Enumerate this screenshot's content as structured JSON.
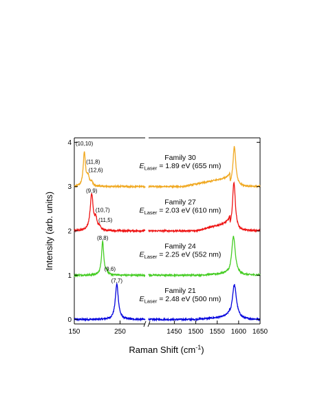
{
  "chart_data": {
    "type": "line",
    "title": "",
    "xlabel": "Raman Shift (cm",
    "xlabel_sup": "-1",
    "xlabel_tail": ")",
    "ylabel": "Intensity (arb. units)",
    "x_axis_break": true,
    "x_segments": [
      {
        "range": [
          150,
          305
        ],
        "ticks": [
          "150",
          "250"
        ],
        "tick_values": [
          150,
          250
        ]
      },
      {
        "range": [
          1390,
          1650
        ],
        "ticks": [
          "1450",
          "1500",
          "1550",
          "1600",
          "1650"
        ],
        "tick_values": [
          1450,
          1500,
          1550,
          1600,
          1650
        ]
      }
    ],
    "ylim": [
      -0.1,
      4.1
    ],
    "y_ticks": [
      "0",
      "1",
      "2",
      "3",
      "4"
    ],
    "grid": false,
    "series": [
      {
        "family": "Family 21",
        "laser_sub": "Laser",
        "laser_value": "= 2.48 eV (500 nm)",
        "color": "#0000dd",
        "offset": 0,
        "peaks_low": [
          {
            "x": 243,
            "amp": 0.8,
            "w": 4
          }
        ],
        "peaks_high": [
          {
            "x": 1590,
            "amp": 0.78,
            "w": 6
          }
        ],
        "hump": {
          "from": 1495,
          "to": 1580,
          "amp": 0.05
        },
        "annotations": [
          {
            "text": "(7,7)",
            "x": 243,
            "y": 0.83
          }
        ]
      },
      {
        "family": "Family 24",
        "laser_sub": "Laser",
        "laser_value": "= 2.25 eV (552 nm)",
        "color": "#44cc22",
        "offset": 1,
        "peaks_low": [
          {
            "x": 212,
            "amp": 0.76,
            "w": 3
          },
          {
            "x": 221,
            "amp": 0.07,
            "w": 2
          }
        ],
        "peaks_high": [
          {
            "x": 1588,
            "amp": 0.88,
            "w": 5
          }
        ],
        "hump": {
          "from": 1510,
          "to": 1575,
          "amp": 0.03
        },
        "annotations": [
          {
            "text": "(8,8)",
            "x": 212,
            "y": 1.8
          },
          {
            "text": "(9,6)",
            "x": 228,
            "y": 1.1
          }
        ]
      },
      {
        "family": "Family 27",
        "laser_sub": "Laser",
        "laser_value": "= 2.03 eV (610 nm)",
        "color": "#ee1111",
        "offset": 2,
        "peaks_low": [
          {
            "x": 188,
            "amp": 0.82,
            "w": 4
          },
          {
            "x": 197,
            "amp": 0.22,
            "w": 3
          },
          {
            "x": 205,
            "amp": 0.08,
            "w": 3
          }
        ],
        "peaks_high": [
          {
            "x": 1589,
            "amp": 1.1,
            "w": 4
          }
        ],
        "hump": {
          "from": 1500,
          "to": 1580,
          "amp": 0.18
        },
        "annotations": [
          {
            "text": "(9,9)",
            "x": 188,
            "y": 2.86
          },
          {
            "text": "(10,7)",
            "x": 212,
            "y": 2.43
          },
          {
            "text": "(11,5)",
            "x": 218,
            "y": 2.2
          }
        ]
      },
      {
        "family": "Family 30",
        "laser_sub": "Laser",
        "laser_value": "= 1.89 eV (655 nm)",
        "color": "#f0a820",
        "offset": 3,
        "peaks_low": [
          {
            "x": 172,
            "amp": 0.76,
            "w": 3
          },
          {
            "x": 180,
            "amp": 0.2,
            "w": 3
          },
          {
            "x": 188,
            "amp": 0.09,
            "w": 3
          }
        ],
        "peaks_high": [
          {
            "x": 1590,
            "amp": 0.9,
            "w": 4
          }
        ],
        "hump": {
          "from": 1470,
          "to": 1580,
          "amp": 0.2
        },
        "annotations": [
          {
            "text": "(10,10)",
            "x": 172,
            "y": 3.93
          },
          {
            "text": "(11,8)",
            "x": 191,
            "y": 3.52
          },
          {
            "text": "(12,6)",
            "x": 197,
            "y": 3.33
          }
        ]
      }
    ]
  }
}
